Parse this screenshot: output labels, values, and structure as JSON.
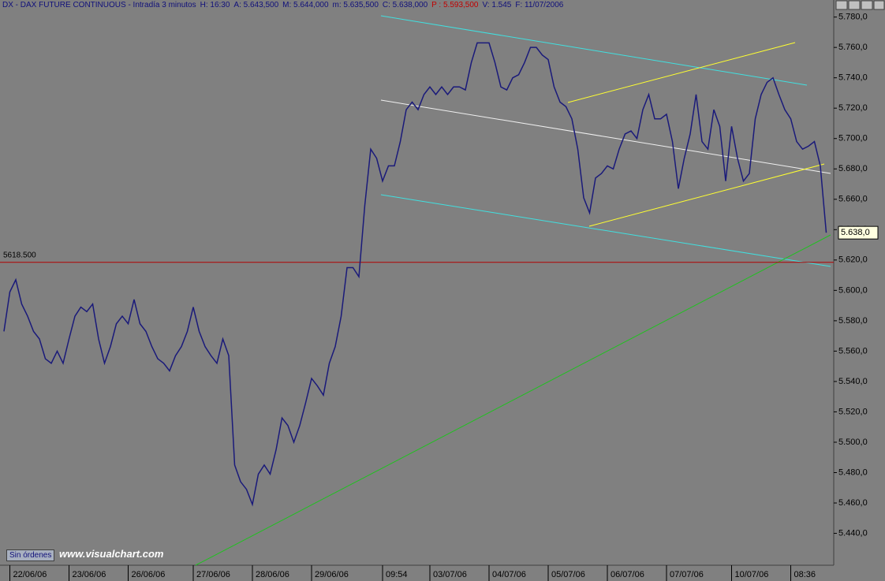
{
  "chart_data": {
    "type": "line",
    "header": [
      "DX - DAX FUTURE CONTINUOUS - Intradía 3 minutos",
      "H: 16:30",
      "A: 5.643,500",
      "M: 5.644,000",
      "m: 5.635,500",
      "C: 5.638,000",
      "P : 5.593,500",
      "V: 1.545",
      "F: 11/07/2006"
    ],
    "categories": [
      null,
      "22/06/06",
      null,
      null,
      null,
      null,
      null,
      null,
      null,
      null,
      null,
      "23/06/06",
      null,
      null,
      null,
      null,
      null,
      null,
      null,
      null,
      null,
      "26/06/06",
      null,
      null,
      null,
      null,
      null,
      null,
      null,
      null,
      null,
      null,
      "27/06/06",
      null,
      null,
      null,
      null,
      null,
      null,
      null,
      null,
      null,
      "28/06/06",
      null,
      null,
      null,
      null,
      null,
      null,
      null,
      null,
      null,
      "29/06/06",
      null,
      null,
      null,
      null,
      null,
      null,
      null,
      null,
      null,
      null,
      null,
      "09:54",
      null,
      null,
      null,
      null,
      null,
      null,
      null,
      "03/07/06",
      null,
      null,
      null,
      null,
      null,
      null,
      null,
      null,
      null,
      "04/07/06",
      null,
      null,
      null,
      null,
      null,
      null,
      null,
      null,
      null,
      "05/07/06",
      null,
      null,
      null,
      null,
      null,
      null,
      null,
      null,
      null,
      "06/07/06",
      null,
      null,
      null,
      null,
      null,
      null,
      null,
      null,
      null,
      "07/07/06",
      null,
      null,
      null,
      null,
      null,
      null,
      null,
      null,
      null,
      null,
      "10/07/06",
      null,
      null,
      null,
      null,
      null,
      null,
      null,
      null,
      null,
      "08:36",
      null,
      null,
      null,
      null,
      null,
      null
    ],
    "series": [
      {
        "color": "#1a1a7a",
        "values": [
          5573,
          5599,
          5607,
          5591,
          5583,
          5573,
          5568,
          5555,
          5552,
          5560,
          5552,
          5568,
          5583,
          5589,
          5586,
          5591,
          5568,
          5552,
          5563,
          5578,
          5583,
          5578,
          5594,
          5578,
          5573,
          5563,
          5555,
          5552,
          5547,
          5557,
          5563,
          5573,
          5589,
          5573,
          5563,
          5557,
          5552,
          5568,
          5557,
          5485,
          5474,
          5469,
          5459,
          5479,
          5485,
          5479,
          5495,
          5516,
          5511,
          5500,
          5511,
          5526,
          5542,
          5537,
          5531,
          5552,
          5563,
          5583,
          5615,
          5615,
          5609,
          5656,
          5693,
          5687,
          5672,
          5682,
          5682,
          5698,
          5719,
          5724,
          5719,
          5729,
          5734,
          5729,
          5734,
          5729,
          5734,
          5734,
          5732,
          5750,
          5763,
          5763,
          5763,
          5750,
          5734,
          5732,
          5740,
          5742,
          5750,
          5760,
          5760,
          5755,
          5752,
          5734,
          5724,
          5721,
          5713,
          5693,
          5661,
          5651,
          5674,
          5677,
          5682,
          5680,
          5693,
          5703,
          5705,
          5700,
          5719,
          5729,
          5713,
          5713,
          5716,
          5698,
          5667,
          5687,
          5703,
          5729,
          5698,
          5693,
          5719,
          5708,
          5672,
          5708,
          5687,
          5672,
          5677,
          5713,
          5729,
          5737,
          5740,
          5729,
          5719,
          5713,
          5698,
          5693,
          5695,
          5698,
          5682,
          5638
        ]
      }
    ],
    "ylim": [
      5419,
      5785
    ],
    "yticks": [
      {
        "value": 5440,
        "label": "5.440,0"
      },
      {
        "value": 5460,
        "label": "5.460,0"
      },
      {
        "value": 5480,
        "label": "5.480,0"
      },
      {
        "value": 5500,
        "label": "5.500,0"
      },
      {
        "value": 5520,
        "label": "5.520,0"
      },
      {
        "value": 5540,
        "label": "5.540,0"
      },
      {
        "value": 5560,
        "label": "5.560,0"
      },
      {
        "value": 5580,
        "label": "5.580,0"
      },
      {
        "value": 5600,
        "label": "5.600,0"
      },
      {
        "value": 5620,
        "label": "5.620,0"
      },
      {
        "value": 5640,
        "label": "5.640,0"
      },
      {
        "value": 5660,
        "label": "5.660,0"
      },
      {
        "value": 5680,
        "label": "5.680,0"
      },
      {
        "value": 5700,
        "label": "5.700,0"
      },
      {
        "value": 5720,
        "label": "5.720,0"
      },
      {
        "value": 5740,
        "label": "5.740,0"
      },
      {
        "value": 5760,
        "label": "5.760,0"
      },
      {
        "value": 5780,
        "label": "5.780,0"
      }
    ],
    "reference_line": {
      "value": 5618.5,
      "label": "5618.500",
      "color": "#b00000"
    },
    "last_price": {
      "value": 5638,
      "label": "5.638,0"
    },
    "orders_button": "Sin órdenes",
    "watermark": "www.visualchart.com"
  }
}
